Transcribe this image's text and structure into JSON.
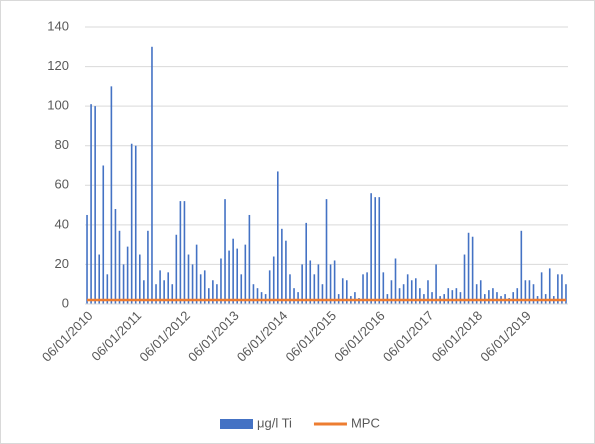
{
  "chart_data": {
    "type": "bar",
    "categories": [
      "06/01/2010",
      null,
      null,
      null,
      null,
      null,
      null,
      null,
      null,
      null,
      null,
      null,
      "06/01/2011",
      null,
      null,
      null,
      null,
      null,
      null,
      null,
      null,
      null,
      null,
      null,
      "06/01/2012",
      null,
      null,
      null,
      null,
      null,
      null,
      null,
      null,
      null,
      null,
      null,
      "06/01/2013",
      null,
      null,
      null,
      null,
      null,
      null,
      null,
      null,
      null,
      null,
      null,
      "06/01/2014",
      null,
      null,
      null,
      null,
      null,
      null,
      null,
      null,
      null,
      null,
      null,
      "06/01/2015",
      null,
      null,
      null,
      null,
      null,
      null,
      null,
      null,
      null,
      null,
      null,
      "06/01/2016",
      null,
      null,
      null,
      null,
      null,
      null,
      null,
      null,
      null,
      null,
      null,
      "06/01/2017",
      null,
      null,
      null,
      null,
      null,
      null,
      null,
      null,
      null,
      null,
      null,
      "06/01/2018",
      null,
      null,
      null,
      null,
      null,
      null,
      null,
      null,
      null,
      null,
      null,
      "06/01/2019",
      null,
      null,
      null,
      null,
      null,
      null,
      null,
      null,
      null,
      null
    ],
    "series": [
      {
        "name": "μg/l Ti",
        "color": "#4472c4",
        "values": [
          45,
          101,
          100,
          25,
          70,
          15,
          110,
          48,
          37,
          20,
          29,
          81,
          80,
          25,
          12,
          37,
          130,
          10,
          17,
          12,
          16,
          10,
          35,
          52,
          52,
          25,
          20,
          30,
          15,
          17,
          8,
          12,
          10,
          23,
          53,
          27,
          33,
          28,
          15,
          30,
          45,
          10,
          8,
          6,
          5,
          17,
          24,
          67,
          38,
          32,
          15,
          8,
          6,
          20,
          41,
          22,
          15,
          20,
          10,
          53,
          20,
          22,
          5,
          13,
          12,
          4,
          6,
          3,
          15,
          16,
          56,
          54,
          54,
          16,
          5,
          12,
          23,
          8,
          10,
          15,
          12,
          13,
          8,
          5,
          12,
          6,
          20,
          4,
          5,
          8,
          7,
          8,
          6,
          25,
          36,
          34,
          10,
          12,
          5,
          7,
          8,
          6,
          4,
          5,
          3,
          6,
          8,
          37,
          12,
          12,
          10,
          4,
          16,
          5,
          18,
          4,
          15,
          15,
          10
        ]
      },
      {
        "name": "MPC",
        "color": "#ed7d31",
        "type": "line",
        "values": [
          2,
          2,
          2,
          2,
          2,
          2,
          2,
          2,
          2,
          2,
          2,
          2,
          2,
          2,
          2,
          2,
          2,
          2,
          2,
          2,
          2,
          2,
          2,
          2,
          2,
          2,
          2,
          2,
          2,
          2,
          2,
          2,
          2,
          2,
          2,
          2,
          2,
          2,
          2,
          2,
          2,
          2,
          2,
          2,
          2,
          2,
          2,
          2,
          2,
          2,
          2,
          2,
          2,
          2,
          2,
          2,
          2,
          2,
          2,
          2,
          2,
          2,
          2,
          2,
          2,
          2,
          2,
          2,
          2,
          2,
          2,
          2,
          2,
          2,
          2,
          2,
          2,
          2,
          2,
          2,
          2,
          2,
          2,
          2,
          2,
          2,
          2,
          2,
          2,
          2,
          2,
          2,
          2,
          2,
          2,
          2,
          2,
          2,
          2,
          2,
          2,
          2,
          2,
          2,
          2,
          2,
          2,
          2,
          2,
          2,
          2,
          2,
          2,
          2,
          2,
          2,
          2,
          2,
          2
        ]
      }
    ],
    "ylim": [
      0,
      140
    ],
    "yticks": [
      0,
      20,
      40,
      60,
      80,
      100,
      120,
      140
    ],
    "grid": true,
    "legend": "bottom"
  }
}
